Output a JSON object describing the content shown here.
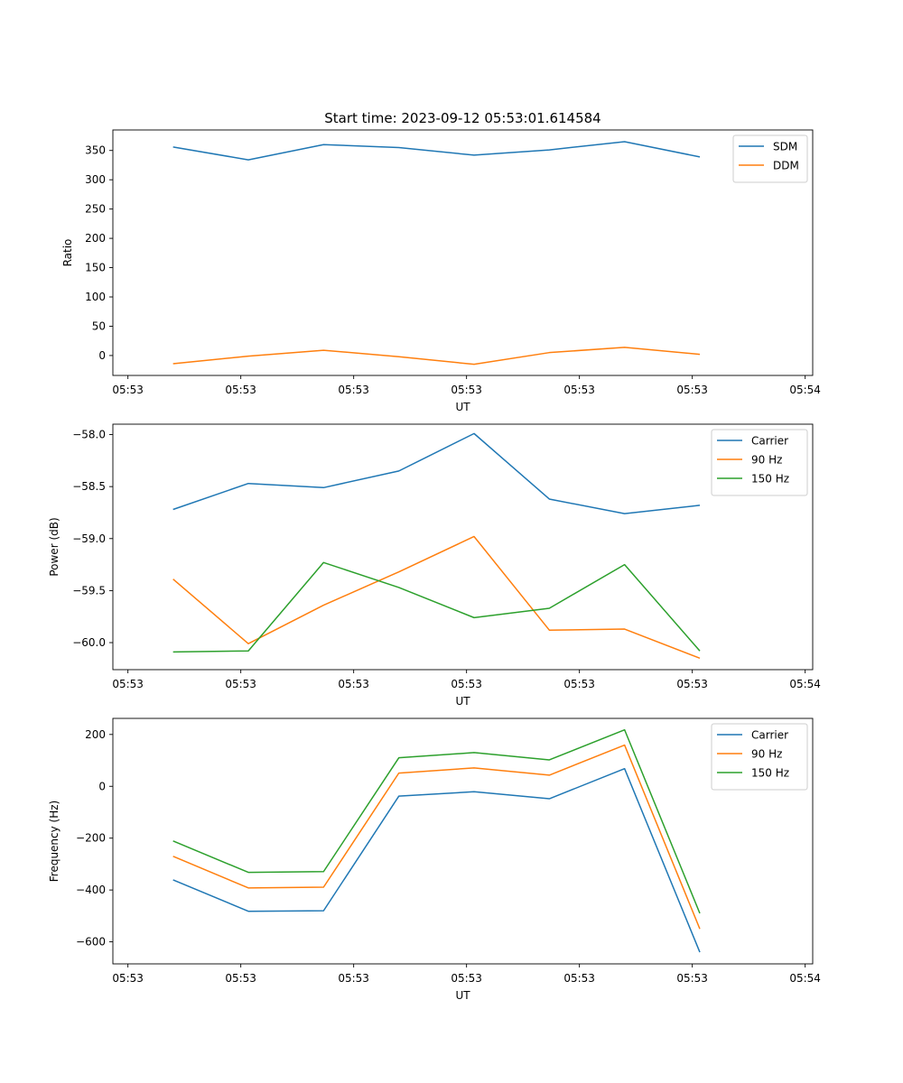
{
  "chart_data": [
    {
      "type": "line",
      "title": "Start time: 2023-09-12 05:53:01.614584",
      "xlabel": "UT",
      "ylabel": "Ratio",
      "x": [
        1,
        2,
        3,
        4,
        5,
        6,
        7,
        8
      ],
      "xlim": [
        0.2,
        9.5
      ],
      "xticks": [
        0.4,
        1.9,
        3.4,
        4.9,
        6.4,
        7.9,
        9.4
      ],
      "xticklabels": [
        "05:53",
        "05:53",
        "05:53",
        "05:53",
        "05:53",
        "05:53",
        "05:54"
      ],
      "ylim": [
        -34,
        385
      ],
      "yticks": [
        0,
        50,
        100,
        150,
        200,
        250,
        300,
        350
      ],
      "yticklabels": [
        "0",
        "50",
        "100",
        "150",
        "200",
        "250",
        "300",
        "350"
      ],
      "legend_position": "top-right",
      "series": [
        {
          "name": "SDM",
          "color": "#1f77b4",
          "values": [
            356,
            334,
            360,
            355,
            342,
            351,
            365,
            339
          ]
        },
        {
          "name": "DDM",
          "color": "#ff7f0e",
          "values": [
            -14,
            -1,
            9,
            -2,
            -15,
            5,
            14,
            2
          ]
        }
      ]
    },
    {
      "type": "line",
      "title": "",
      "xlabel": "UT",
      "ylabel": "Power (dB)",
      "x": [
        1,
        2,
        3,
        4,
        5,
        6,
        7,
        8
      ],
      "xlim": [
        0.2,
        9.5
      ],
      "xticks": [
        0.4,
        1.9,
        3.4,
        4.9,
        6.4,
        7.9,
        9.4
      ],
      "xticklabels": [
        "05:53",
        "05:53",
        "05:53",
        "05:53",
        "05:53",
        "05:53",
        "05:54"
      ],
      "ylim": [
        -60.26,
        -57.9
      ],
      "yticks": [
        -60.0,
        -59.5,
        -59.0,
        -58.5,
        -58.0
      ],
      "yticklabels": [
        "−60.0",
        "−59.5",
        "−59.0",
        "−58.5",
        "−58.0"
      ],
      "legend_position": "top-right",
      "series": [
        {
          "name": "Carrier",
          "color": "#1f77b4",
          "values": [
            -58.72,
            -58.47,
            -58.51,
            -58.35,
            -57.99,
            -58.62,
            -58.76,
            -58.68
          ]
        },
        {
          "name": "90 Hz",
          "color": "#ff7f0e",
          "values": [
            -59.39,
            -60.01,
            -59.64,
            -59.32,
            -58.98,
            -59.88,
            -59.87,
            -60.15
          ]
        },
        {
          "name": "150 Hz",
          "color": "#2ca02c",
          "values": [
            -60.09,
            -60.08,
            -59.23,
            -59.47,
            -59.76,
            -59.67,
            -59.25,
            -60.08
          ]
        }
      ]
    },
    {
      "type": "line",
      "title": "",
      "xlabel": "UT",
      "ylabel": "Frequency (Hz)",
      "x": [
        1,
        2,
        3,
        4,
        5,
        6,
        7,
        8
      ],
      "xlim": [
        0.2,
        9.5
      ],
      "xticks": [
        0.4,
        1.9,
        3.4,
        4.9,
        6.4,
        7.9,
        9.4
      ],
      "xticklabels": [
        "05:53",
        "05:53",
        "05:53",
        "05:53",
        "05:53",
        "05:53",
        "05:54"
      ],
      "ylim": [
        -685,
        262
      ],
      "yticks": [
        -600,
        -400,
        -200,
        0,
        200
      ],
      "yticklabels": [
        "−600",
        "−400",
        "−200",
        "0",
        "200"
      ],
      "legend_position": "top-right",
      "series": [
        {
          "name": "Carrier",
          "color": "#1f77b4",
          "values": [
            -361,
            -482,
            -480,
            -38,
            -21,
            -48,
            68,
            -640
          ]
        },
        {
          "name": "90 Hz",
          "color": "#ff7f0e",
          "values": [
            -270,
            -392,
            -389,
            51,
            71,
            43,
            159,
            -550
          ]
        },
        {
          "name": "150 Hz",
          "color": "#2ca02c",
          "values": [
            -211,
            -332,
            -329,
            110,
            130,
            102,
            218,
            -490
          ]
        }
      ]
    }
  ]
}
